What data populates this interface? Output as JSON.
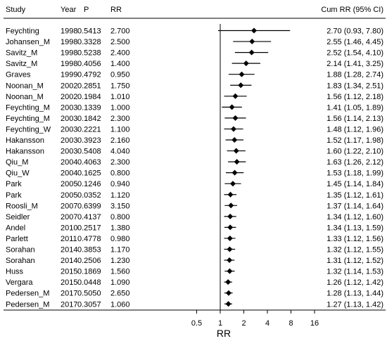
{
  "chart_data": {
    "type": "forest",
    "title": "",
    "columns": {
      "study": "Study",
      "year": "Year",
      "p": "P",
      "rr": "RR",
      "cum": "Cum RR (95% CI)"
    },
    "xlabel": "RR",
    "x_scale": "log",
    "x_ticks": [
      0.5,
      1,
      2,
      4,
      8,
      16
    ],
    "x_tick_labels": [
      "0.5",
      "1",
      "2",
      "4",
      "8",
      "16"
    ],
    "xlim": [
      0.5,
      16
    ],
    "reference_line": 1,
    "rows": [
      {
        "study": "Feychting",
        "year": "1998",
        "p": "0.5413",
        "rr": "2.700",
        "cum": 2.7,
        "lo": 0.93,
        "hi": 7.8,
        "cum_text": "2.70 (0.93, 7.80)"
      },
      {
        "study": "Johansen_M",
        "year": "1998",
        "p": "0.3328",
        "rr": "2.500",
        "cum": 2.55,
        "lo": 1.46,
        "hi": 4.45,
        "cum_text": "2.55 (1.46, 4.45)"
      },
      {
        "study": "Savitz_M",
        "year": "1998",
        "p": "0.5238",
        "rr": "2.400",
        "cum": 2.52,
        "lo": 1.54,
        "hi": 4.1,
        "cum_text": "2.52 (1.54, 4.10)"
      },
      {
        "study": "Savitz_M",
        "year": "1998",
        "p": "0.4056",
        "rr": "1.400",
        "cum": 2.14,
        "lo": 1.41,
        "hi": 3.25,
        "cum_text": "2.14 (1.41, 3.25)"
      },
      {
        "study": "Graves",
        "year": "1999",
        "p": "0.4792",
        "rr": "0.950",
        "cum": 1.88,
        "lo": 1.28,
        "hi": 2.74,
        "cum_text": "1.88 (1.28, 2.74)"
      },
      {
        "study": "Noonan_M",
        "year": "2002",
        "p": "0.2851",
        "rr": "1.750",
        "cum": 1.83,
        "lo": 1.34,
        "hi": 2.51,
        "cum_text": "1.83 (1.34, 2.51)"
      },
      {
        "study": "Noonan_M",
        "year": "2002",
        "p": "0.1984",
        "rr": "1.010",
        "cum": 1.56,
        "lo": 1.12,
        "hi": 2.18,
        "cum_text": "1.56 (1.12, 2.18)"
      },
      {
        "study": "Feychting_M",
        "year": "2003",
        "p": "0.1339",
        "rr": "1.000",
        "cum": 1.41,
        "lo": 1.05,
        "hi": 1.89,
        "cum_text": "1.41 (1.05, 1.89)"
      },
      {
        "study": "Feychting_M",
        "year": "2003",
        "p": "0.1842",
        "rr": "2.300",
        "cum": 1.56,
        "lo": 1.14,
        "hi": 2.13,
        "cum_text": "1.56 (1.14, 2.13)"
      },
      {
        "study": "Feychting_W",
        "year": "2003",
        "p": "0.2221",
        "rr": "1.100",
        "cum": 1.48,
        "lo": 1.12,
        "hi": 1.96,
        "cum_text": "1.48 (1.12, 1.96)"
      },
      {
        "study": "Hakansson",
        "year": "2003",
        "p": "0.3923",
        "rr": "2.160",
        "cum": 1.52,
        "lo": 1.17,
        "hi": 1.98,
        "cum_text": "1.52 (1.17, 1.98)"
      },
      {
        "study": "Hakansson",
        "year": "2003",
        "p": "0.5408",
        "rr": "4.040",
        "cum": 1.6,
        "lo": 1.22,
        "hi": 2.1,
        "cum_text": "1.60 (1.22, 2.10)"
      },
      {
        "study": "Qiu_M",
        "year": "2004",
        "p": "0.4063",
        "rr": "2.300",
        "cum": 1.63,
        "lo": 1.26,
        "hi": 2.12,
        "cum_text": "1.63 (1.26, 2.12)"
      },
      {
        "study": "Qiu_W",
        "year": "2004",
        "p": "0.1625",
        "rr": "0.800",
        "cum": 1.53,
        "lo": 1.18,
        "hi": 1.99,
        "cum_text": "1.53 (1.18, 1.99)"
      },
      {
        "study": "Park",
        "year": "2005",
        "p": "0.1246",
        "rr": "0.940",
        "cum": 1.45,
        "lo": 1.14,
        "hi": 1.84,
        "cum_text": "1.45 (1.14, 1.84)"
      },
      {
        "study": "Park",
        "year": "2005",
        "p": "0.0352",
        "rr": "1.120",
        "cum": 1.35,
        "lo": 1.12,
        "hi": 1.61,
        "cum_text": "1.35 (1.12, 1.61)"
      },
      {
        "study": "Roosli_M",
        "year": "2007",
        "p": "0.6399",
        "rr": "3.150",
        "cum": 1.37,
        "lo": 1.14,
        "hi": 1.64,
        "cum_text": "1.37 (1.14, 1.64)"
      },
      {
        "study": "Seidler",
        "year": "2007",
        "p": "0.4137",
        "rr": "0.800",
        "cum": 1.34,
        "lo": 1.12,
        "hi": 1.6,
        "cum_text": "1.34 (1.12, 1.60)"
      },
      {
        "study": "Andel",
        "year": "2010",
        "p": "0.2517",
        "rr": "1.380",
        "cum": 1.34,
        "lo": 1.13,
        "hi": 1.59,
        "cum_text": "1.34 (1.13, 1.59)"
      },
      {
        "study": "Parlett",
        "year": "2011",
        "p": "0.4778",
        "rr": "0.980",
        "cum": 1.33,
        "lo": 1.12,
        "hi": 1.56,
        "cum_text": "1.33 (1.12, 1.56)"
      },
      {
        "study": "Sorahan",
        "year": "2014",
        "p": "0.3853",
        "rr": "1.170",
        "cum": 1.32,
        "lo": 1.12,
        "hi": 1.55,
        "cum_text": "1.32 (1.12, 1.55)"
      },
      {
        "study": "Sorahan",
        "year": "2014",
        "p": "0.2506",
        "rr": "1.230",
        "cum": 1.31,
        "lo": 1.12,
        "hi": 1.52,
        "cum_text": "1.31 (1.12, 1.52)"
      },
      {
        "study": "Huss",
        "year": "2015",
        "p": "0.1869",
        "rr": "1.560",
        "cum": 1.32,
        "lo": 1.14,
        "hi": 1.53,
        "cum_text": "1.32 (1.14, 1.53)"
      },
      {
        "study": "Vergara",
        "year": "2015",
        "p": "0.0448",
        "rr": "1.090",
        "cum": 1.26,
        "lo": 1.12,
        "hi": 1.42,
        "cum_text": "1.26 (1.12, 1.42)"
      },
      {
        "study": "Pedersen_M",
        "year": "2017",
        "p": "0.5050",
        "rr": "2.650",
        "cum": 1.28,
        "lo": 1.13,
        "hi": 1.44,
        "cum_text": "1.28 (1.13, 1.44)"
      },
      {
        "study": "Pedersen_M",
        "year": "2017",
        "p": "0.3057",
        "rr": "1.060",
        "cum": 1.27,
        "lo": 1.13,
        "hi": 1.42,
        "cum_text": "1.27 (1.13, 1.42)"
      }
    ]
  }
}
